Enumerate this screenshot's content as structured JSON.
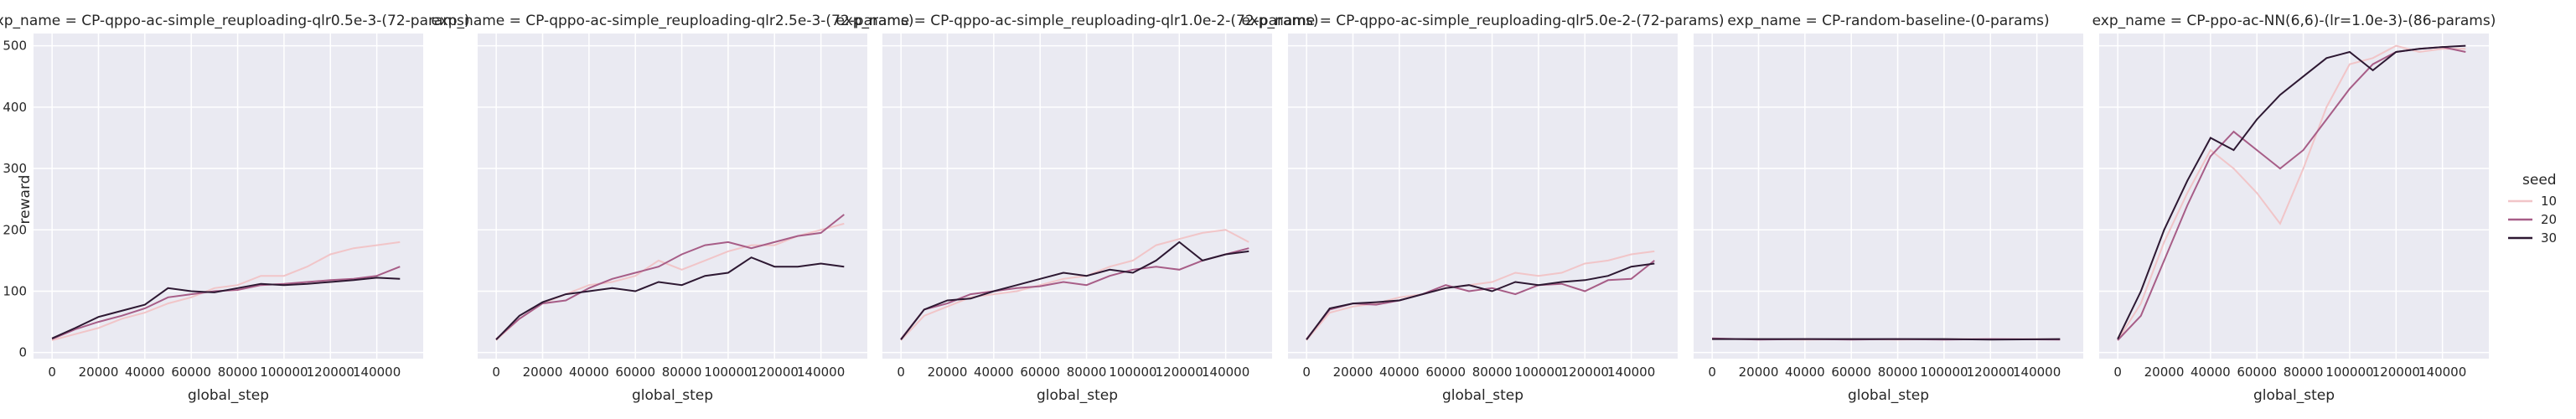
{
  "chart_data": {
    "type": "line",
    "ylabel": "reward",
    "xlabel": "global_step",
    "xlim": [
      -8000,
      160000
    ],
    "ylim": [
      -10,
      520
    ],
    "grid": true,
    "xticks": [
      "0",
      "20000",
      "40000",
      "60000",
      "80000",
      "100000",
      "120000",
      "140000"
    ],
    "yticks": [
      "0",
      "100",
      "200",
      "300",
      "400",
      "500"
    ],
    "legend": {
      "title": "seed",
      "placement": "right",
      "entries": [
        {
          "label": "10",
          "color": "#f1c5c8"
        },
        {
          "label": "20",
          "color": "#a75d87"
        },
        {
          "label": "30",
          "color": "#2d1832"
        }
      ]
    },
    "panels": [
      {
        "title": "exp_name = CP-qppo-ac-simple_reuploading-qlr0.5e-3-(72-params)",
        "series": [
          {
            "name": "10",
            "x": [
              0,
              10000,
              20000,
              30000,
              40000,
              50000,
              60000,
              70000,
              80000,
              90000,
              100000,
              110000,
              120000,
              130000,
              140000,
              150000
            ],
            "y": [
              20,
              30,
              40,
              55,
              65,
              80,
              90,
              105,
              110,
              125,
              125,
              140,
              160,
              170,
              175,
              180
            ]
          },
          {
            "name": "20",
            "x": [
              0,
              10000,
              20000,
              30000,
              40000,
              50000,
              60000,
              70000,
              80000,
              90000,
              100000,
              110000,
              120000,
              130000,
              140000,
              150000
            ],
            "y": [
              22,
              38,
              50,
              60,
              72,
              90,
              95,
              100,
              102,
              110,
              112,
              115,
              118,
              120,
              125,
              140
            ]
          },
          {
            "name": "30",
            "x": [
              0,
              10000,
              20000,
              30000,
              40000,
              50000,
              60000,
              70000,
              80000,
              90000,
              100000,
              110000,
              120000,
              130000,
              140000,
              150000
            ],
            "y": [
              23,
              40,
              58,
              68,
              78,
              105,
              100,
              98,
              105,
              112,
              110,
              112,
              115,
              118,
              122,
              120
            ]
          }
        ]
      },
      {
        "title": "exp_name = CP-qppo-ac-simple_reuploading-qlr2.5e-3-(72-params)",
        "series": [
          {
            "name": "10",
            "x": [
              0,
              10000,
              20000,
              30000,
              40000,
              50000,
              60000,
              70000,
              80000,
              90000,
              100000,
              110000,
              120000,
              130000,
              140000,
              150000
            ],
            "y": [
              20,
              55,
              80,
              95,
              110,
              115,
              125,
              150,
              135,
              150,
              165,
              175,
              175,
              190,
              200,
              210
            ]
          },
          {
            "name": "20",
            "x": [
              0,
              10000,
              20000,
              30000,
              40000,
              50000,
              60000,
              70000,
              80000,
              90000,
              100000,
              110000,
              120000,
              130000,
              140000,
              150000
            ],
            "y": [
              22,
              55,
              80,
              85,
              105,
              120,
              130,
              140,
              160,
              175,
              180,
              170,
              180,
              190,
              195,
              225
            ]
          },
          {
            "name": "30",
            "x": [
              0,
              10000,
              20000,
              30000,
              40000,
              50000,
              60000,
              70000,
              80000,
              90000,
              100000,
              110000,
              120000,
              130000,
              140000,
              150000
            ],
            "y": [
              21,
              60,
              82,
              95,
              100,
              105,
              100,
              115,
              110,
              125,
              130,
              155,
              140,
              140,
              145,
              140
            ]
          }
        ]
      },
      {
        "title": "exp_name = CP-qppo-ac-simple_reuploading-qlr1.0e-2-(72-params)",
        "series": [
          {
            "name": "10",
            "x": [
              0,
              10000,
              20000,
              30000,
              40000,
              50000,
              60000,
              70000,
              80000,
              90000,
              100000,
              110000,
              120000,
              130000,
              140000,
              150000
            ],
            "y": [
              20,
              60,
              75,
              90,
              95,
              100,
              110,
              120,
              125,
              140,
              150,
              175,
              185,
              195,
              200,
              180
            ]
          },
          {
            "name": "20",
            "x": [
              0,
              10000,
              20000,
              30000,
              40000,
              50000,
              60000,
              70000,
              80000,
              90000,
              100000,
              110000,
              120000,
              130000,
              140000,
              150000
            ],
            "y": [
              22,
              70,
              80,
              95,
              100,
              105,
              108,
              115,
              110,
              125,
              135,
              140,
              135,
              150,
              160,
              170
            ]
          },
          {
            "name": "30",
            "x": [
              0,
              10000,
              20000,
              30000,
              40000,
              50000,
              60000,
              70000,
              80000,
              90000,
              100000,
              110000,
              120000,
              130000,
              140000,
              150000
            ],
            "y": [
              21,
              70,
              85,
              88,
              100,
              110,
              120,
              130,
              125,
              135,
              130,
              150,
              180,
              150,
              160,
              165
            ]
          }
        ]
      },
      {
        "title": "exp_name = CP-qppo-ac-simple_reuploading-qlr5.0e-2-(72-params)",
        "series": [
          {
            "name": "10",
            "x": [
              0,
              10000,
              20000,
              30000,
              40000,
              50000,
              60000,
              70000,
              80000,
              90000,
              100000,
              110000,
              120000,
              130000,
              140000,
              150000
            ],
            "y": [
              20,
              65,
              75,
              80,
              90,
              95,
              105,
              110,
              115,
              130,
              125,
              130,
              145,
              150,
              160,
              165
            ]
          },
          {
            "name": "20",
            "x": [
              0,
              10000,
              20000,
              30000,
              40000,
              50000,
              60000,
              70000,
              80000,
              90000,
              100000,
              110000,
              120000,
              130000,
              140000,
              150000
            ],
            "y": [
              22,
              70,
              80,
              78,
              85,
              95,
              110,
              100,
              105,
              95,
              110,
              112,
              100,
              118,
              120,
              150
            ]
          },
          {
            "name": "30",
            "x": [
              0,
              10000,
              20000,
              30000,
              40000,
              50000,
              60000,
              70000,
              80000,
              90000,
              100000,
              110000,
              120000,
              130000,
              140000,
              150000
            ],
            "y": [
              21,
              72,
              80,
              82,
              85,
              95,
              105,
              110,
              100,
              115,
              110,
              115,
              118,
              125,
              140,
              145
            ]
          }
        ]
      },
      {
        "title": "exp_name = CP-random-baseline-(0-params)",
        "series": [
          {
            "name": "10",
            "x": [
              0,
              20000,
              40000,
              60000,
              80000,
              100000,
              120000,
              150000
            ],
            "y": [
              22,
              22,
              21,
              22,
              21,
              22,
              22,
              22
            ]
          },
          {
            "name": "20",
            "x": [
              0,
              20000,
              40000,
              60000,
              80000,
              100000,
              120000,
              150000
            ],
            "y": [
              23,
              21,
              22,
              21,
              22,
              21,
              22,
              21
            ]
          },
          {
            "name": "30",
            "x": [
              0,
              20000,
              40000,
              60000,
              80000,
              100000,
              120000,
              150000
            ],
            "y": [
              22,
              22,
              22,
              22,
              22,
              22,
              21,
              22
            ]
          }
        ]
      },
      {
        "title": "exp_name = CP-ppo-ac-NN(6,6)-(lr=1.0e-3)-(86-params)",
        "series": [
          {
            "name": "10",
            "x": [
              0,
              10000,
              20000,
              30000,
              40000,
              50000,
              60000,
              70000,
              80000,
              90000,
              100000,
              110000,
              120000,
              130000,
              140000,
              150000
            ],
            "y": [
              20,
              80,
              180,
              260,
              330,
              300,
              260,
              210,
              300,
              400,
              470,
              480,
              500,
              490,
              495,
              495
            ]
          },
          {
            "name": "20",
            "x": [
              0,
              10000,
              20000,
              30000,
              40000,
              50000,
              60000,
              70000,
              80000,
              90000,
              100000,
              110000,
              120000,
              130000,
              140000,
              150000
            ],
            "y": [
              20,
              60,
              150,
              240,
              320,
              360,
              330,
              300,
              330,
              380,
              430,
              470,
              490,
              495,
              498,
              490
            ]
          },
          {
            "name": "30",
            "x": [
              0,
              10000,
              20000,
              30000,
              40000,
              50000,
              60000,
              70000,
              80000,
              90000,
              100000,
              110000,
              120000,
              130000,
              140000,
              150000
            ],
            "y": [
              22,
              100,
              200,
              280,
              350,
              330,
              380,
              420,
              450,
              480,
              490,
              460,
              490,
              495,
              498,
              500
            ]
          }
        ]
      }
    ]
  }
}
